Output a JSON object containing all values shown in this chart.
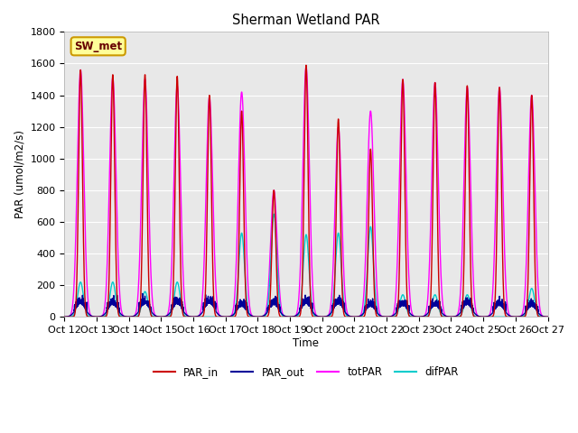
{
  "title": "Sherman Wetland PAR",
  "ylabel": "PAR (umol/m2/s)",
  "xlabel": "Time",
  "ylim": [
    0,
    1800
  ],
  "bg_color": "#e8e8e8",
  "fig_color": "#ffffff",
  "series": {
    "PAR_in": {
      "color": "#cc0000",
      "lw": 1.0
    },
    "PAR_out": {
      "color": "#000099",
      "lw": 1.0
    },
    "totPAR": {
      "color": "#ff00ff",
      "lw": 1.0
    },
    "difPAR": {
      "color": "#00cccc",
      "lw": 1.0
    }
  },
  "xtick_labels": [
    "Oct 12",
    "Oct 13",
    "Oct 14",
    "Oct 15",
    "Oct 16",
    "Oct 17",
    "Oct 18",
    "Oct 19",
    "Oct 20",
    "Oct 21",
    "Oct 22",
    "Oct 23",
    "Oct 24",
    "Oct 25",
    "Oct 26",
    "Oct 27"
  ],
  "par_in_peaks": [
    1560,
    1530,
    1530,
    1520,
    1400,
    1300,
    800,
    1590,
    1250,
    1060,
    1500,
    1480,
    1460,
    1450,
    1400
  ],
  "tot_par_peaks": [
    1560,
    1510,
    1500,
    1460,
    1390,
    1420,
    800,
    1580,
    1200,
    1300,
    1500,
    1480,
    1450,
    1450,
    1400
  ],
  "dif_par_peaks": [
    220,
    220,
    160,
    220,
    0,
    530,
    650,
    520,
    530,
    570,
    140,
    140,
    140,
    0,
    180
  ],
  "par_out_peaks": [
    80,
    75,
    80,
    80,
    85,
    65,
    75,
    80,
    80,
    65,
    70,
    70,
    75,
    70,
    65
  ],
  "station_label": "SW_met",
  "station_label_bg": "#ffff99",
  "station_label_border": "#cc9900",
  "n_days": 15,
  "pts_per_day": 288
}
